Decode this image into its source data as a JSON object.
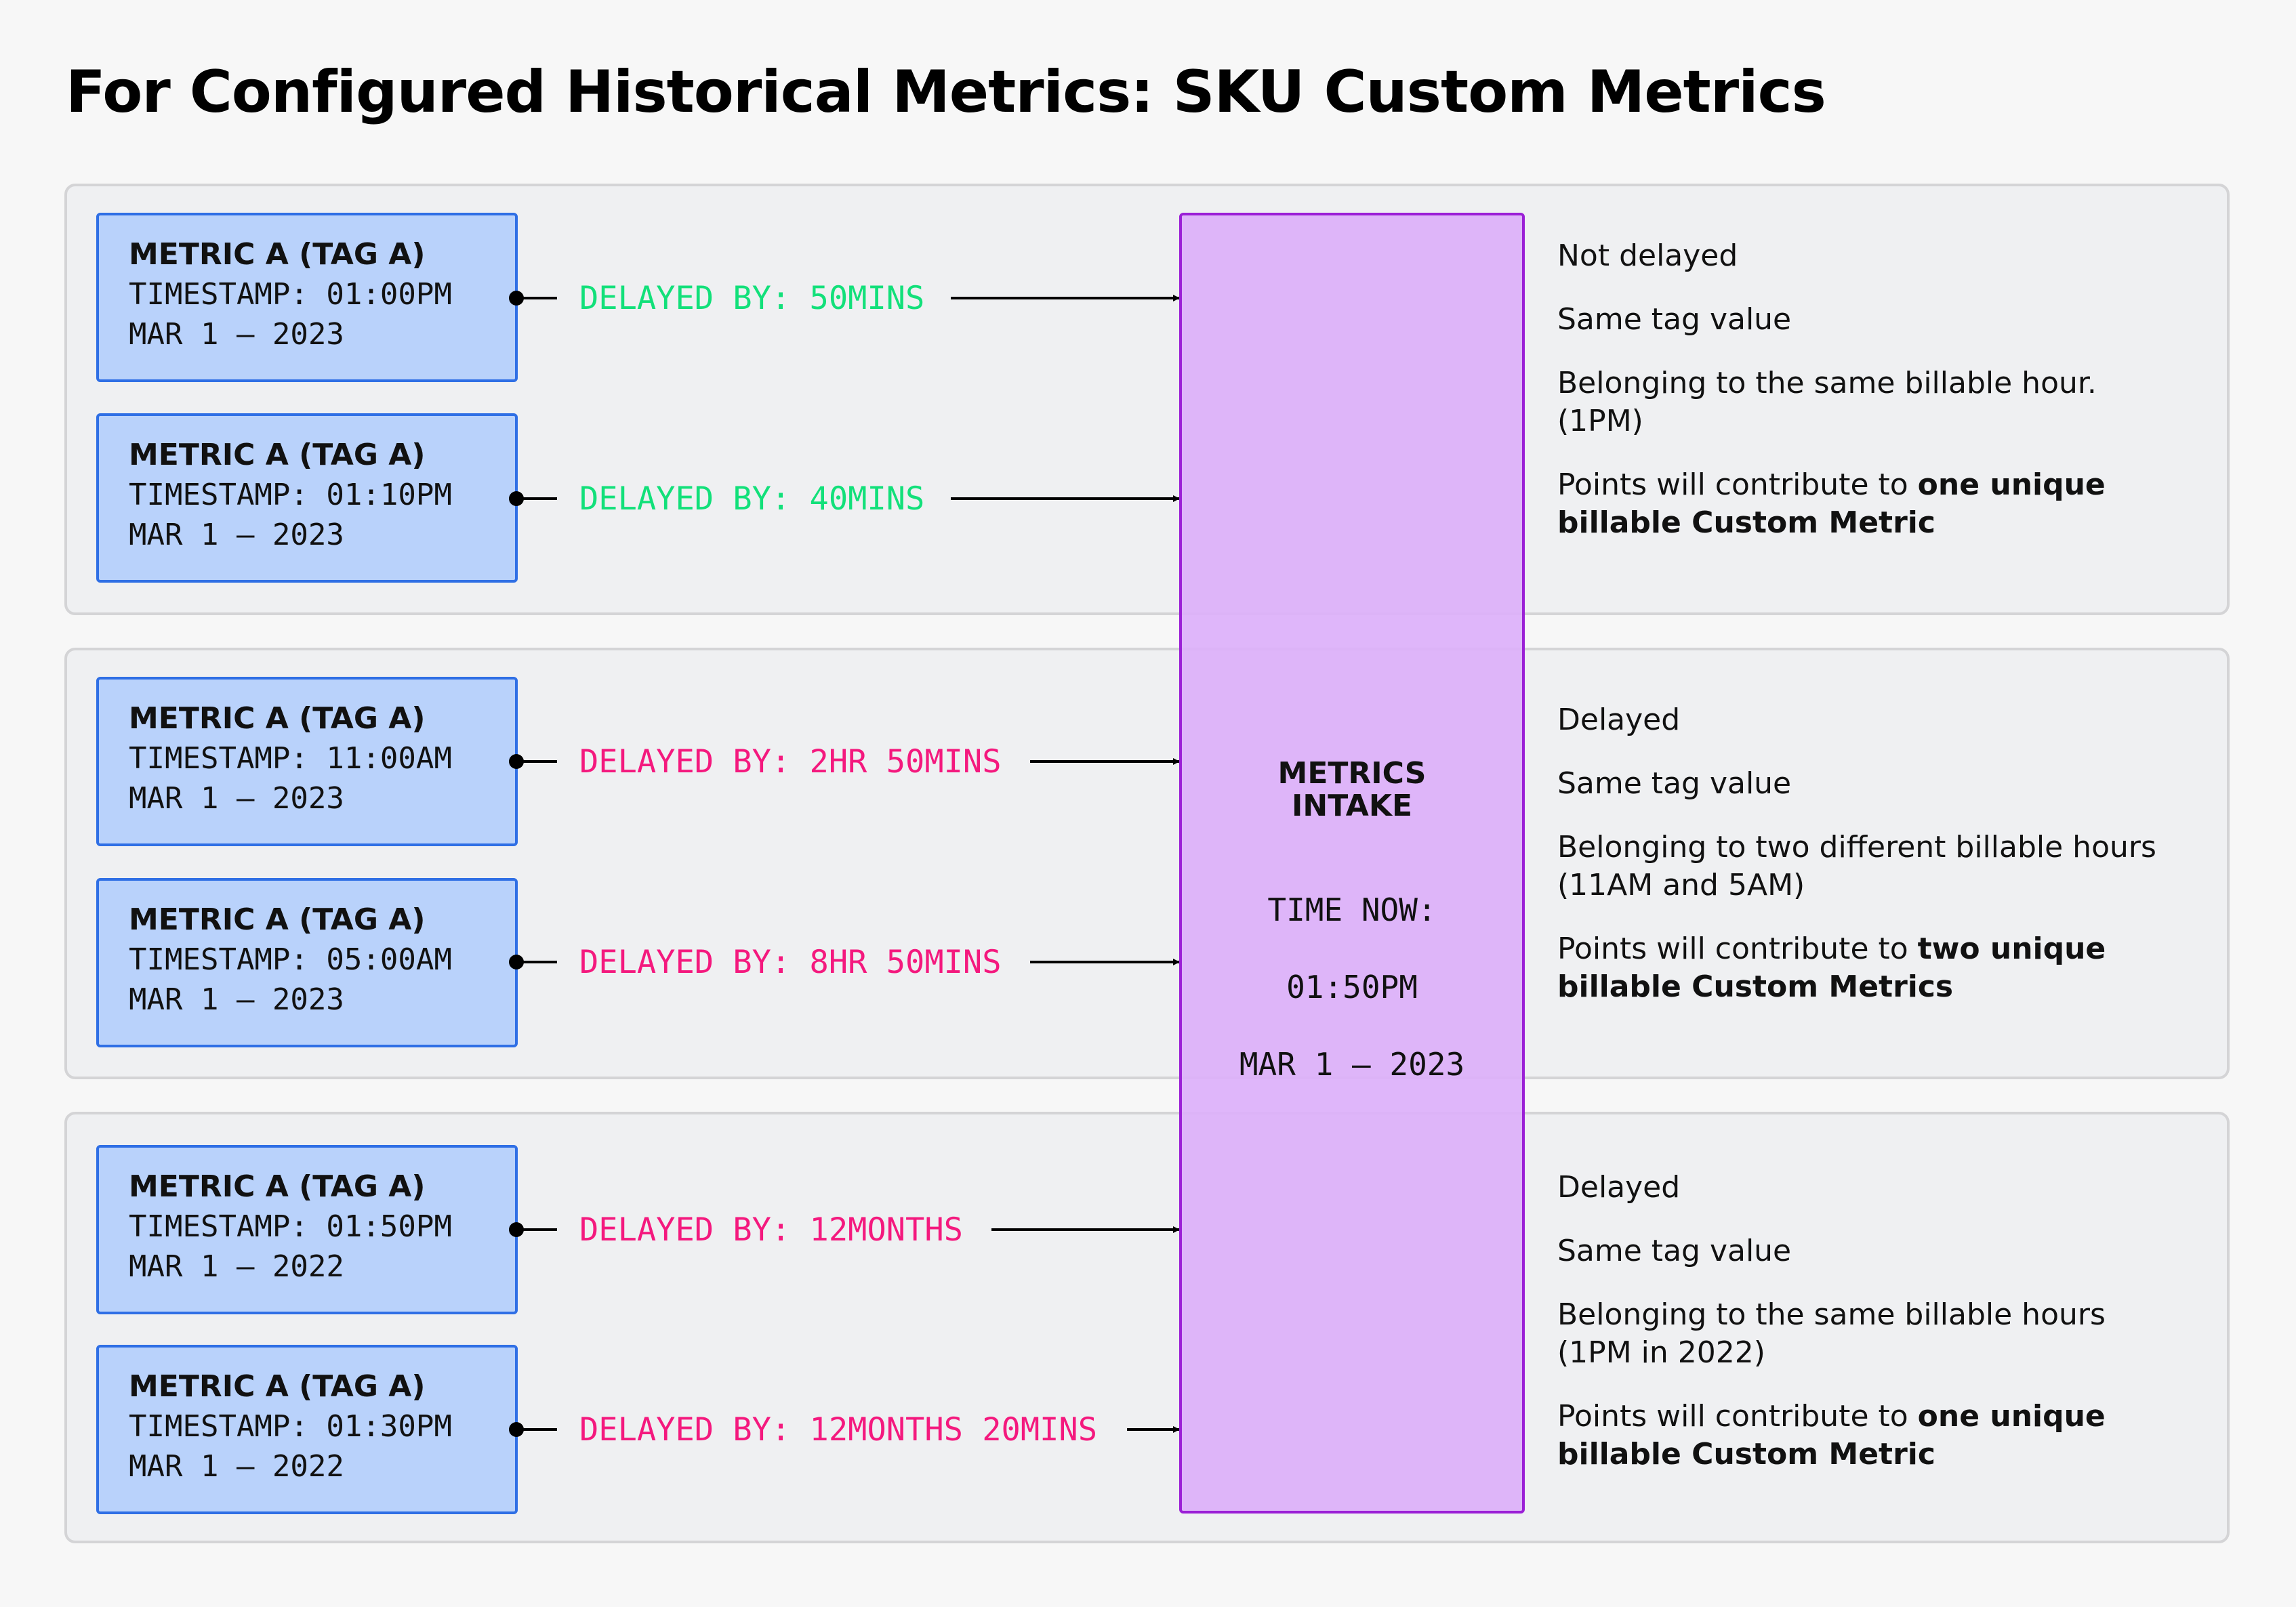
{
  "title": "For Configured Historical Metrics: SKU Custom Metrics",
  "intake": {
    "title_line1": "METRICS",
    "title_line2": "INTAKE",
    "time_label": "TIME NOW:",
    "time_value": "01:50PM",
    "date": "MAR 1 – 2023"
  },
  "groups": [
    {
      "metrics": [
        {
          "name": "METRIC A (TAG A)",
          "timestamp": "TIMESTAMP: 01:00PM",
          "date": "MAR 1 – 2023",
          "delay": "DELAYED BY: 50MINS"
        },
        {
          "name": "METRIC A (TAG A)",
          "timestamp": "TIMESTAMP: 01:10PM",
          "date": "MAR 1 – 2023",
          "delay": "DELAYED BY: 40MINS"
        }
      ],
      "notes": {
        "status": "Not delayed",
        "tag": "Same tag value",
        "hours": "Belonging to the same billable hour. (1PM)",
        "contrib_prefix": "Points will contribute to ",
        "contrib_bold": "one unique billable Custom Metric"
      }
    },
    {
      "metrics": [
        {
          "name": "METRIC A (TAG A)",
          "timestamp": "TIMESTAMP: 11:00AM",
          "date": "MAR 1 – 2023",
          "delay": "DELAYED BY: 2HR 50MINS"
        },
        {
          "name": "METRIC A (TAG A)",
          "timestamp": "TIMESTAMP: 05:00AM",
          "date": "MAR 1 – 2023",
          "delay": "DELAYED BY: 8HR 50MINS"
        }
      ],
      "notes": {
        "status": "Delayed",
        "tag": "Same tag value",
        "hours": "Belonging to two different billable hours (11AM and 5AM)",
        "contrib_prefix": "Points will contribute to ",
        "contrib_bold": "two unique billable Custom Metrics"
      }
    },
    {
      "metrics": [
        {
          "name": "METRIC A (TAG A)",
          "timestamp": "TIMESTAMP: 01:50PM",
          "date": "MAR 1 – 2022",
          "delay": "DELAYED BY: 12MONTHS"
        },
        {
          "name": "METRIC A (TAG A)",
          "timestamp": "TIMESTAMP: 01:30PM",
          "date": "MAR 1 – 2022",
          "delay": "DELAYED BY: 12MONTHS 20MINS"
        }
      ],
      "notes": {
        "status": "Delayed",
        "tag": "Same tag value",
        "hours": "Belonging to the same billable hours (1PM in 2022)",
        "contrib_prefix": "Points will contribute to ",
        "contrib_bold": "one unique billable Custom Metric"
      }
    }
  ],
  "colors": {
    "on_time": "#12e07a",
    "delayed": "#f4197e",
    "metric_fill": "#b9d2fb",
    "metric_border": "#2f6fe5",
    "intake_fill": "#dcb0fa",
    "intake_border": "#9b1fd6"
  }
}
